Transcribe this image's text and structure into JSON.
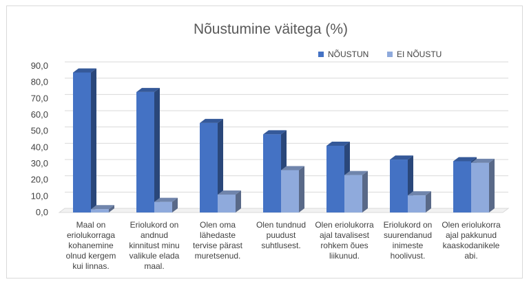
{
  "chart_data": {
    "type": "bar",
    "title": "Nõustumine väitega (%)",
    "xlabel": "",
    "ylabel": "",
    "ylim": [
      0,
      90
    ],
    "yticks": [
      "0,0",
      "10,0",
      "20,0",
      "30,0",
      "40,0",
      "50,0",
      "60,0",
      "70,0",
      "80,0",
      "90,0"
    ],
    "grid": true,
    "legend_position": "top-right",
    "categories": [
      [
        "Maal on",
        "eriolukorraga",
        "kohanemine",
        "olnud kergem",
        "kui linnas."
      ],
      [
        "Eriolukord on",
        "andnud",
        "kinnitust minu",
        "valikule elada",
        "maal."
      ],
      [
        "Olen oma",
        "lähedaste",
        "tervise pärast",
        "muretsenud."
      ],
      [
        "Olen tundnud",
        "puudust",
        "suhtlusest."
      ],
      [
        "Olen eriolukorra",
        "ajal tavalisest",
        "rohkem õues",
        "liikunud."
      ],
      [
        "Eriolukord on",
        "suurendanud",
        "inimeste",
        "hoolivust."
      ],
      [
        "Olen eriolukorra",
        "ajal pakkunud",
        "kaaskodanikele",
        "abi."
      ]
    ],
    "series": [
      {
        "name": "NÕUSTUN",
        "color": "#4472c4",
        "values": [
          86.0,
          74.0,
          55.0,
          48.0,
          41.0,
          32.5,
          31.5
        ]
      },
      {
        "name": "EI NÕUSTU",
        "color": "#8faadc",
        "values": [
          2.0,
          6.5,
          11.0,
          26.0,
          23.0,
          10.5,
          30.5
        ]
      }
    ]
  }
}
